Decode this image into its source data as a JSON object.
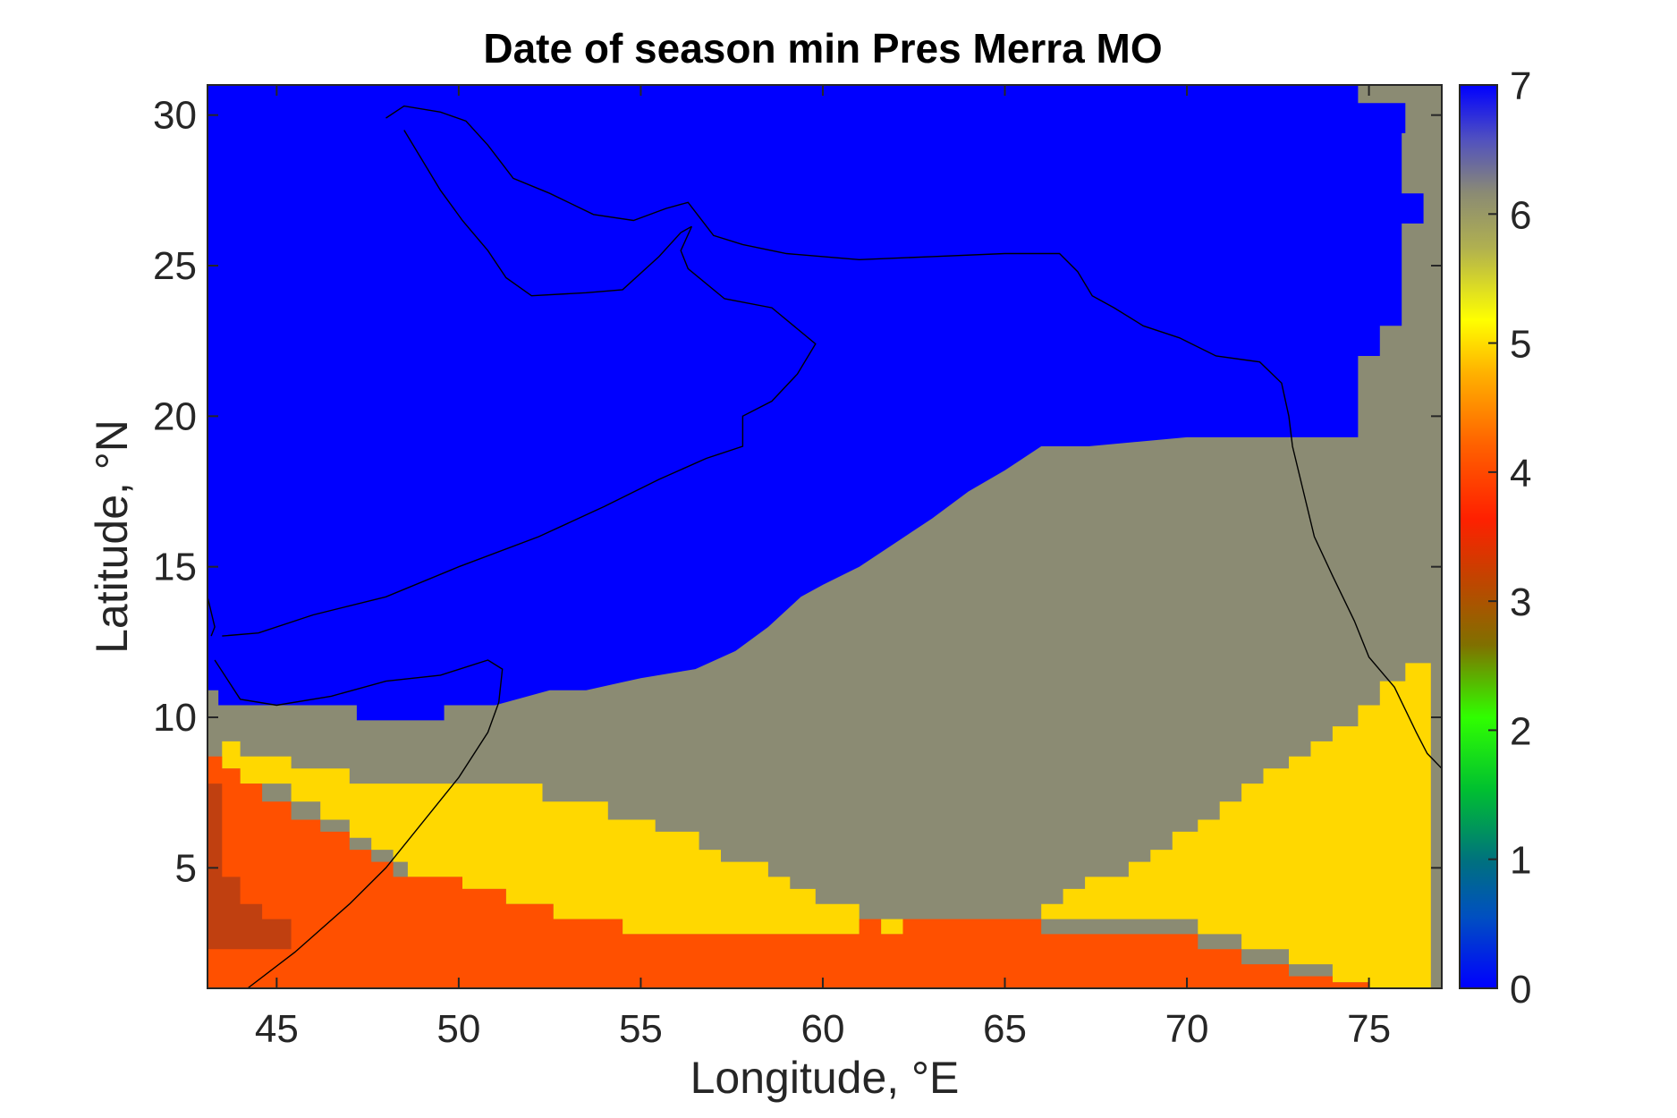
{
  "chart_data": {
    "type": "heatmap",
    "title": "Date of season min Pres Merra MO",
    "xlabel": "Longitude, °E",
    "ylabel": "Latitude, °N",
    "xlim": [
      43.1,
      77.0
    ],
    "ylim": [
      1.0,
      31.0
    ],
    "xticks": [
      45,
      50,
      55,
      60,
      65,
      70,
      75
    ],
    "yticks": [
      5,
      10,
      15,
      20,
      25,
      30
    ],
    "xtick_labels": [
      "45",
      "50",
      "55",
      "60",
      "65",
      "70",
      "75"
    ],
    "ytick_labels": [
      "5",
      "10",
      "15",
      "20",
      "25",
      "30"
    ],
    "colorbar": {
      "range": [
        0,
        7
      ],
      "ticks": [
        0,
        1,
        2,
        3,
        4,
        5,
        6,
        7
      ],
      "tick_labels": [
        "0",
        "1",
        "2",
        "3",
        "4",
        "5",
        "6",
        "7"
      ],
      "colors": [
        "#0000ff",
        "#006b9e",
        "#00d000",
        "#2eff00",
        "#8a6a00",
        "#c84a00",
        "#ff2000",
        "#ff6a00",
        "#ffb000",
        "#fff000",
        "#c8c040",
        "#8b8b73",
        "#5a60c0",
        "#0000ff"
      ]
    },
    "grid": false,
    "categories_legend": [
      {
        "value": 7,
        "color": "#0000ff"
      },
      {
        "value": 6,
        "color": "#8b8b73"
      },
      {
        "value": 5,
        "color": "#ffd800"
      },
      {
        "value": 4,
        "color": "#ff5000"
      },
      {
        "value": 3,
        "color": "#c04010"
      }
    ],
    "regions": [
      {
        "value": 7,
        "description_points": [
          [
            43.1,
            31
          ],
          [
            74.7,
            31
          ],
          [
            74.7,
            30.4
          ],
          [
            76.0,
            30.4
          ],
          [
            76.0,
            30.0
          ],
          [
            76.0,
            29.4
          ],
          [
            75.9,
            29.4
          ],
          [
            75.9,
            27.4
          ],
          [
            76.5,
            27.4
          ],
          [
            76.5,
            26.4
          ],
          [
            75.9,
            26.4
          ],
          [
            75.9,
            23.0
          ],
          [
            75.3,
            23.0
          ],
          [
            75.3,
            22.0
          ],
          [
            74.7,
            22.0
          ],
          [
            74.7,
            19.3
          ],
          [
            70.0,
            19.3
          ],
          [
            67.3,
            19.0
          ],
          [
            66.0,
            19.0
          ],
          [
            65.0,
            18.2
          ],
          [
            64.0,
            17.5
          ],
          [
            63.0,
            16.6
          ],
          [
            62.0,
            15.8
          ],
          [
            61.0,
            15.0
          ],
          [
            60.0,
            14.4
          ],
          [
            59.4,
            14.0
          ],
          [
            58.5,
            13.0
          ],
          [
            57.6,
            12.2
          ],
          [
            56.5,
            11.6
          ],
          [
            55.0,
            11.3
          ],
          [
            53.5,
            10.9
          ],
          [
            52.5,
            10.9
          ],
          [
            51.0,
            10.4
          ],
          [
            50.5,
            10.4
          ],
          [
            49.6,
            10.4
          ],
          [
            49.6,
            9.9
          ],
          [
            47.2,
            9.9
          ],
          [
            47.2,
            10.4
          ],
          [
            43.4,
            10.4
          ],
          [
            43.4,
            10.9
          ],
          [
            43.1,
            10.9
          ]
        ]
      },
      {
        "value": 6,
        "description_points": []
      },
      {
        "value": 5,
        "description_points": []
      },
      {
        "value": 4,
        "description_points": []
      },
      {
        "value": 3,
        "description_points": []
      }
    ]
  }
}
